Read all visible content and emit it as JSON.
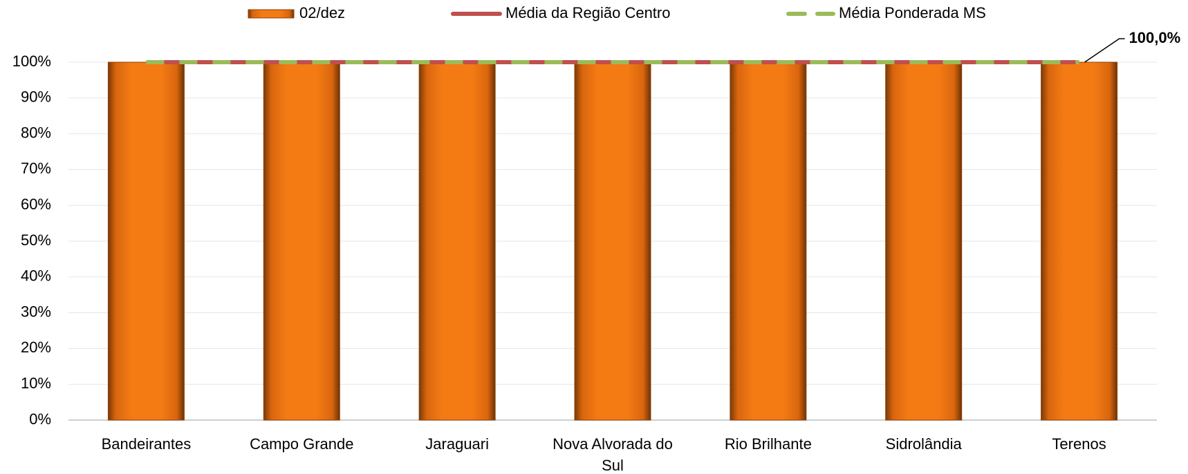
{
  "chart_data": {
    "type": "bar",
    "categories": [
      "Bandeirantes",
      "Campo Grande",
      "Jaraguari",
      "Nova Alvorada do Sul",
      "Rio Brilhante",
      "Sidrolândia",
      "Terenos"
    ],
    "series": [
      {
        "name": "02/dez",
        "type": "bar",
        "color": "#f07a12",
        "values": [
          100,
          100,
          100,
          100,
          100,
          100,
          100
        ]
      },
      {
        "name": "Média da Região Centro",
        "type": "line",
        "color": "#c0504d",
        "values": [
          100,
          100,
          100,
          100,
          100,
          100,
          100
        ]
      },
      {
        "name": "Média Ponderada MS",
        "type": "line",
        "dashed": true,
        "color": "#9bbb59",
        "values": [
          100,
          100,
          100,
          100,
          100,
          100,
          100
        ]
      }
    ],
    "annotation": "100,0%",
    "ylim": [
      0,
      100
    ],
    "yticks": [
      {
        "value": 0,
        "label": "0%"
      },
      {
        "value": 10,
        "label": "10%"
      },
      {
        "value": 20,
        "label": "20%"
      },
      {
        "value": 30,
        "label": "30%"
      },
      {
        "value": 40,
        "label": "40%"
      },
      {
        "value": 50,
        "label": "50%"
      },
      {
        "value": 60,
        "label": "60%"
      },
      {
        "value": 70,
        "label": "70%"
      },
      {
        "value": 80,
        "label": "80%"
      },
      {
        "value": 90,
        "label": "90%"
      },
      {
        "value": 100,
        "label": "100%"
      }
    ],
    "grid": true,
    "legend": "top"
  }
}
